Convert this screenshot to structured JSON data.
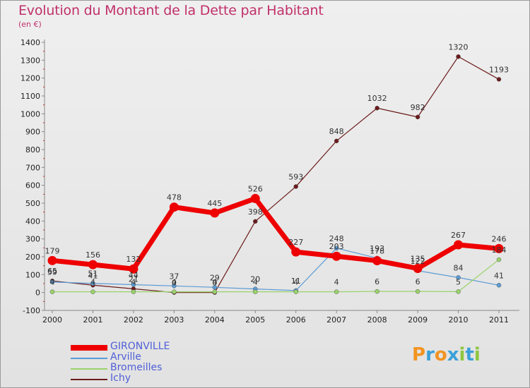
{
  "chart_data": {
    "type": "line",
    "title": "Evolution du Montant de la Dette par Habitant",
    "subtitle": "(en €)",
    "xlabel": "",
    "ylabel": "",
    "x": [
      "2000",
      "2001",
      "2002",
      "2003",
      "2004",
      "2005",
      "2006",
      "2007",
      "2008",
      "2009",
      "2010",
      "2011"
    ],
    "yticks": [
      "-100",
      "0",
      "100",
      "200",
      "300",
      "400",
      "500",
      "600",
      "700",
      "800",
      "900",
      "1000",
      "1100",
      "1200",
      "1300",
      "1400"
    ],
    "ylim": [
      -100,
      1400
    ],
    "grid": false,
    "legend_position": "bottom-left",
    "series": [
      {
        "name": "GIRONVILLE",
        "color": "#ee0000",
        "values": [
          179,
          156,
          132,
          478,
          445,
          526,
          227,
          203,
          178,
          135,
          267,
          246
        ],
        "labels": [
          "179",
          "156",
          "132",
          "478",
          "445",
          "526",
          "227",
          "203",
          "178",
          "135",
          "267",
          "246"
        ]
      },
      {
        "name": "Arville",
        "color": "#5b9bd5",
        "values": [
          59,
          51,
          44,
          37,
          29,
          20,
          11,
          248,
          193,
          122,
          84,
          41
        ],
        "labels": [
          "59",
          "51",
          "44",
          "37",
          "29",
          "20",
          "11",
          "248",
          "193",
          "122",
          "84",
          "41"
        ]
      },
      {
        "name": "Bromeilles",
        "color": "#9ad36a",
        "values": [
          4,
          4,
          4,
          4,
          4,
          4,
          4,
          4,
          6,
          6,
          5,
          184
        ],
        "labels": [
          "4",
          "4",
          "4",
          "4",
          "4",
          "4",
          "4",
          "4",
          "6",
          "6",
          "5",
          "184"
        ]
      },
      {
        "name": "Ichy",
        "color": "#6b1a1a",
        "values": [
          65,
          41,
          21,
          0,
          0,
          398,
          593,
          848,
          1032,
          982,
          1320,
          1193
        ],
        "labels": [
          "65",
          "41",
          "21",
          "0",
          "0",
          "398",
          "593",
          "848",
          "1032",
          "982",
          "1320",
          "1193"
        ]
      }
    ]
  },
  "logo": {
    "text": "Proxiti",
    "letters": [
      "P",
      "r",
      "o",
      "x",
      "i",
      "t",
      "i"
    ],
    "colors": [
      "#f29422",
      "#3aa0d8",
      "#f29422",
      "#3aa0d8",
      "#8dc63f",
      "#3aa0d8",
      "#8dc63f"
    ]
  }
}
